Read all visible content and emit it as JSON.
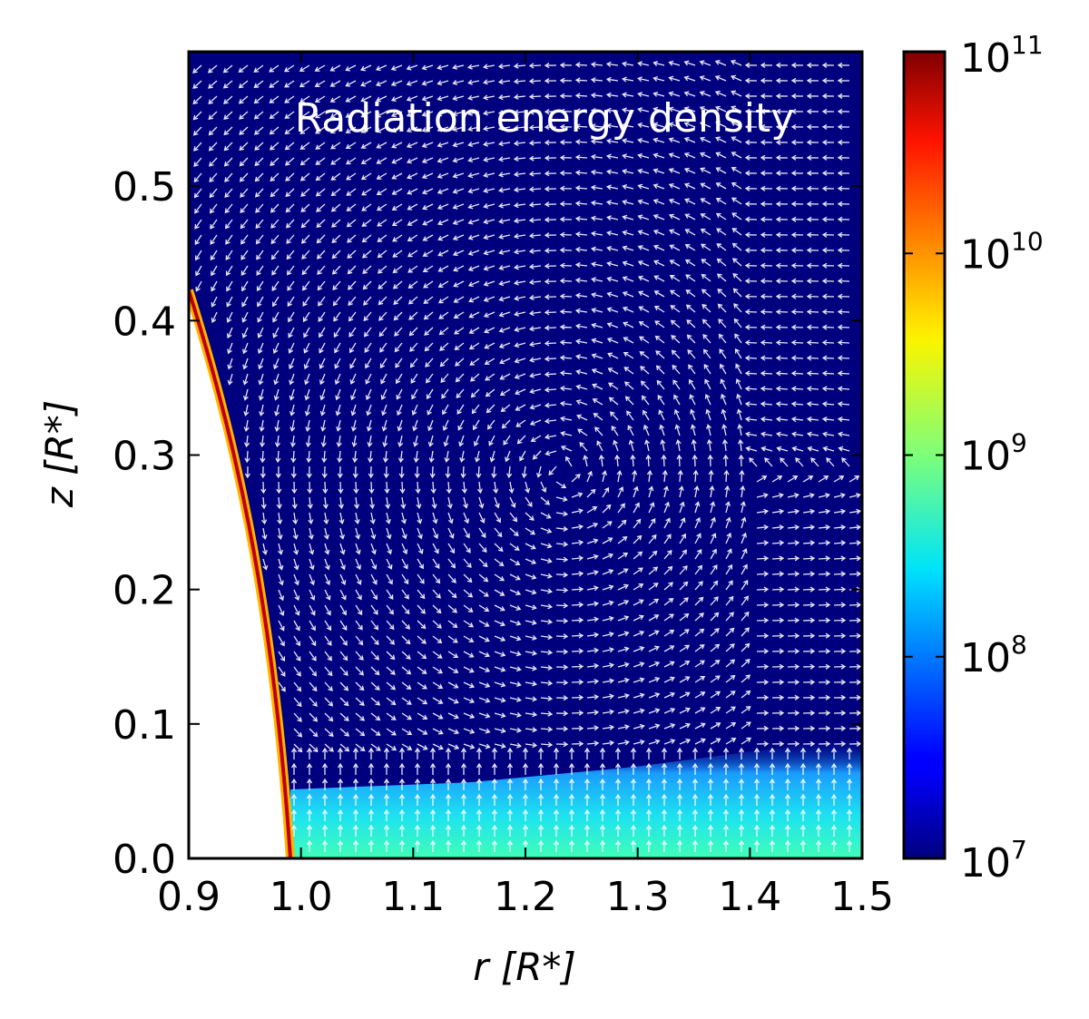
{
  "chart_data": {
    "type": "heatmap",
    "title": "Radiation energy density",
    "xlabel": "r [R*]",
    "ylabel": "z [R*]",
    "xlim": [
      0.9,
      1.5
    ],
    "ylim": [
      0.0,
      0.6
    ],
    "x_ticks": [
      "0.9",
      "1.0",
      "1.1",
      "1.2",
      "1.3",
      "1.4",
      "1.5"
    ],
    "y_ticks": [
      "0.0",
      "0.1",
      "0.2",
      "0.3",
      "0.4",
      "0.5"
    ],
    "colorbar": {
      "scale": "log",
      "range": [
        10000000,
        100000000000
      ],
      "colormap": "jet",
      "ticks": [
        {
          "base": "10",
          "exp": "7",
          "value": 10000000
        },
        {
          "base": "10",
          "exp": "8",
          "value": 100000000
        },
        {
          "base": "10",
          "exp": "9",
          "value": 1000000000
        },
        {
          "base": "10",
          "exp": "10",
          "value": 10000000000
        },
        {
          "base": "10",
          "exp": "11",
          "value": 100000000000
        }
      ]
    },
    "features": {
      "background_value": 10000000,
      "star_surface": {
        "r_at_z0": 0.99,
        "z_top": 0.43,
        "peak_value": 100000000000
      },
      "disk_layer": {
        "z_top_inner": 0.045,
        "z_top_outer": 0.09,
        "value": 300000000
      }
    },
    "overlay": "vector field (white arrows)"
  },
  "colors": {
    "background": "#00007f",
    "arrows": "#ffffff",
    "title": "#ffffff",
    "axes": "#000000"
  }
}
